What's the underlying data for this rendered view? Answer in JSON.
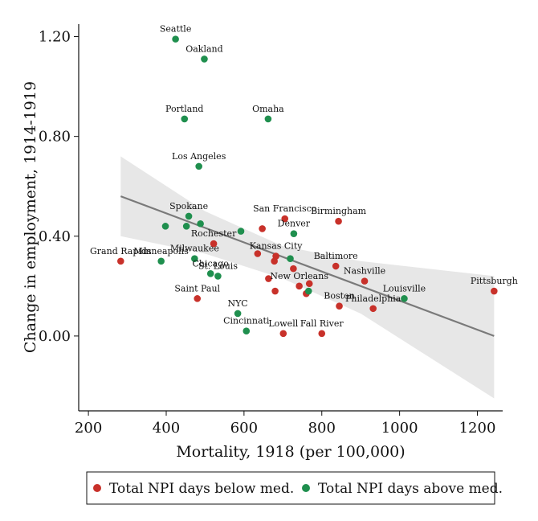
{
  "chart_data": {
    "type": "scatter",
    "xlabel": "Mortality, 1918 (per 100,000)",
    "ylabel": "Change in employment, 1914-1919",
    "xlim": [
      175,
      1265
    ],
    "ylim": [
      -0.3,
      1.25
    ],
    "x_ticks": [
      200,
      400,
      600,
      800,
      1000,
      1200
    ],
    "x_tick_labels": [
      "200",
      "400",
      "600",
      "800",
      "1000",
      "1200"
    ],
    "y_ticks": [
      0.0,
      0.4,
      0.8,
      1.2
    ],
    "y_tick_labels": [
      "0.00",
      "0.40",
      "0.80",
      "1.20"
    ],
    "grid": false,
    "legend_position": "bottom",
    "colors": {
      "below": "#c8312a",
      "above": "#1f8f4e",
      "fit": "#7a7a7a",
      "band": "#e3e3e3"
    },
    "series": [
      {
        "name": "Total NPI days below med.",
        "key": "below",
        "points": [
          {
            "label": "Grand Rapids",
            "x": 283,
            "y": 0.3
          },
          {
            "label": "Saint Paul",
            "x": 480,
            "y": 0.15
          },
          {
            "label": "Rochester",
            "x": 522,
            "y": 0.37
          },
          {
            "label": "San Francisco",
            "x": 705,
            "y": 0.47
          },
          {
            "label": "Birmingham",
            "x": 843,
            "y": 0.46
          },
          {
            "label": "Baltimore",
            "x": 836,
            "y": 0.28
          },
          {
            "label": "Kansas City",
            "x": 682,
            "y": 0.32
          },
          {
            "label": "Nashville",
            "x": 910,
            "y": 0.22
          },
          {
            "label": "New Orleans",
            "x": 742,
            "y": 0.2
          },
          {
            "label": "Boston",
            "x": 845,
            "y": 0.12
          },
          {
            "label": "Philadelphia",
            "x": 932,
            "y": 0.11
          },
          {
            "label": "Pittsburgh",
            "x": 1243,
            "y": 0.18
          },
          {
            "label": "Lowell",
            "x": 701,
            "y": 0.01
          },
          {
            "label": "Fall River",
            "x": 800,
            "y": 0.01
          },
          {
            "label": "",
            "x": 647,
            "y": 0.43
          },
          {
            "label": "",
            "x": 635,
            "y": 0.33
          },
          {
            "label": "",
            "x": 678,
            "y": 0.3
          },
          {
            "label": "",
            "x": 727,
            "y": 0.27
          },
          {
            "label": "",
            "x": 663,
            "y": 0.23
          },
          {
            "label": "",
            "x": 680,
            "y": 0.18
          },
          {
            "label": "",
            "x": 760,
            "y": 0.17
          },
          {
            "label": "",
            "x": 768,
            "y": 0.21
          }
        ]
      },
      {
        "name": "Total NPI days above med.",
        "key": "above",
        "points": [
          {
            "label": "Seattle",
            "x": 424,
            "y": 1.19
          },
          {
            "label": "Oakland",
            "x": 498,
            "y": 1.11
          },
          {
            "label": "Portland",
            "x": 447,
            "y": 0.87
          },
          {
            "label": "Omaha",
            "x": 662,
            "y": 0.87
          },
          {
            "label": "Los Angeles",
            "x": 484,
            "y": 0.68
          },
          {
            "label": "Spokane",
            "x": 458,
            "y": 0.48
          },
          {
            "label": "Denver",
            "x": 728,
            "y": 0.41
          },
          {
            "label": "Minneapolis",
            "x": 387,
            "y": 0.3
          },
          {
            "label": "Milwaukee",
            "x": 473,
            "y": 0.31
          },
          {
            "label": "Chicago",
            "x": 514,
            "y": 0.25
          },
          {
            "label": "St. Louis",
            "x": 533,
            "y": 0.24
          },
          {
            "label": "NYC",
            "x": 584,
            "y": 0.09
          },
          {
            "label": "Cincinnati",
            "x": 606,
            "y": 0.02
          },
          {
            "label": "Louisville",
            "x": 1012,
            "y": 0.15
          },
          {
            "label": "",
            "x": 398,
            "y": 0.44
          },
          {
            "label": "",
            "x": 452,
            "y": 0.44
          },
          {
            "label": "",
            "x": 488,
            "y": 0.45
          },
          {
            "label": "",
            "x": 592,
            "y": 0.42
          },
          {
            "label": "",
            "x": 719,
            "y": 0.31
          },
          {
            "label": "",
            "x": 766,
            "y": 0.18
          }
        ]
      }
    ],
    "fit_line": {
      "x": [
        283,
        1243
      ],
      "y": [
        0.56,
        0.0
      ]
    },
    "confidence_band": {
      "x": [
        283,
        500,
        700,
        900,
        1243
      ],
      "lower": [
        0.4,
        0.33,
        0.23,
        0.09,
        -0.25
      ],
      "upper": [
        0.72,
        0.5,
        0.36,
        0.3,
        0.24
      ]
    }
  }
}
